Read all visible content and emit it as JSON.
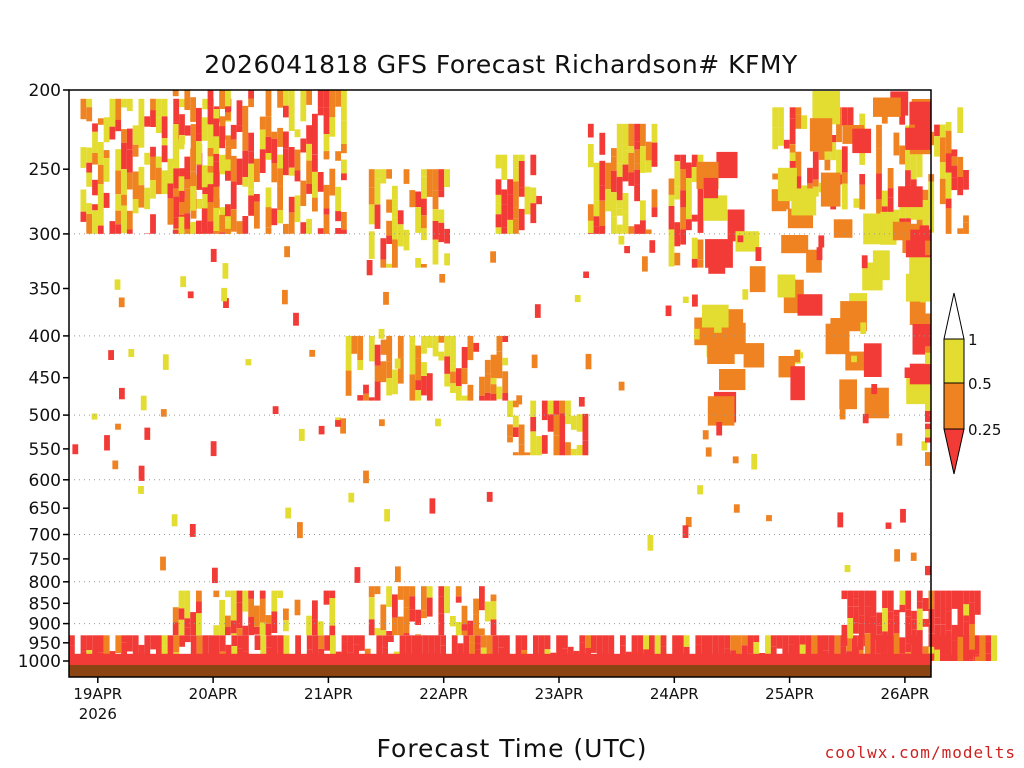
{
  "title": "2026041818 GFS Forecast Richardson# KFMY",
  "x_axis_title": "Forecast Time (UTC)",
  "credit": "coolwx.com/modelts",
  "colors": {
    "low": "#f23b37",
    "mid": "#ef8322",
    "high": "#e3dc31",
    "ground": "#8b4513",
    "grid": "#999999"
  },
  "chart_data": {
    "type": "heatmap",
    "title": "2026041818 GFS Forecast Richardson# KFMY",
    "xlabel": "Forecast Time (UTC)",
    "ylabel": "",
    "y_scale": "log (pressure, hPa), inverted",
    "ylim": [
      1000,
      200
    ],
    "x_start": "2026-04-18 18Z",
    "x_tick_labels": [
      "19APR",
      "20APR",
      "21APR",
      "22APR",
      "23APR",
      "24APR",
      "25APR",
      "26APR"
    ],
    "x_year_label": "2026",
    "y_ticks": [
      200,
      250,
      300,
      350,
      400,
      450,
      500,
      550,
      600,
      650,
      700,
      750,
      800,
      850,
      900,
      950,
      1000
    ],
    "grid_levels": [
      300,
      400,
      500,
      600,
      700,
      800,
      900
    ],
    "legend": {
      "placement": "right",
      "labels": [
        "1",
        "0.5",
        "0.25"
      ],
      "bins": [
        {
          "range": "0.5-1",
          "color": "#e3dc31"
        },
        {
          "range": "0.25-0.5",
          "color": "#ef8322"
        },
        {
          "range": "<0.25",
          "color": "#f23b37"
        }
      ]
    },
    "regions": [
      {
        "t": [
          0.1,
          1.4
        ],
        "p": [
          205,
          300
        ],
        "cat": "mixed"
      },
      {
        "t": [
          0.9,
          2.4
        ],
        "p": [
          200,
          300
        ],
        "cat": "mixed"
      },
      {
        "t": [
          2.6,
          3.3
        ],
        "p": [
          250,
          330
        ],
        "cat": "mixed"
      },
      {
        "t": [
          3.7,
          4.1
        ],
        "p": [
          240,
          300
        ],
        "cat": "mixed"
      },
      {
        "t": [
          4.5,
          5.1
        ],
        "p": [
          220,
          300
        ],
        "cat": "mixed"
      },
      {
        "t": [
          5.2,
          5.5
        ],
        "p": [
          240,
          330
        ],
        "cat": "mixed"
      },
      {
        "t": [
          6.1,
          6.9
        ],
        "p": [
          210,
          280
        ],
        "cat": "mixed"
      },
      {
        "t": [
          7.0,
          7.8
        ],
        "p": [
          210,
          300
        ],
        "cat": "mixed"
      },
      {
        "t": [
          2.4,
          3.8
        ],
        "p": [
          400,
          480
        ],
        "cat": "mixed"
      },
      {
        "t": [
          3.8,
          4.5
        ],
        "p": [
          480,
          560
        ],
        "cat": "mixed"
      },
      {
        "t": [
          0.0,
          8.0
        ],
        "p": [
          930,
          1000
        ],
        "cat": "low"
      },
      {
        "t": [
          0.9,
          2.3
        ],
        "p": [
          820,
          930
        ],
        "cat": "mixed"
      },
      {
        "t": [
          2.6,
          3.7
        ],
        "p": [
          810,
          930
        ],
        "cat": "mixed"
      },
      {
        "t": [
          6.7,
          7.9
        ],
        "p": [
          820,
          1000
        ],
        "cat": "low"
      }
    ]
  }
}
